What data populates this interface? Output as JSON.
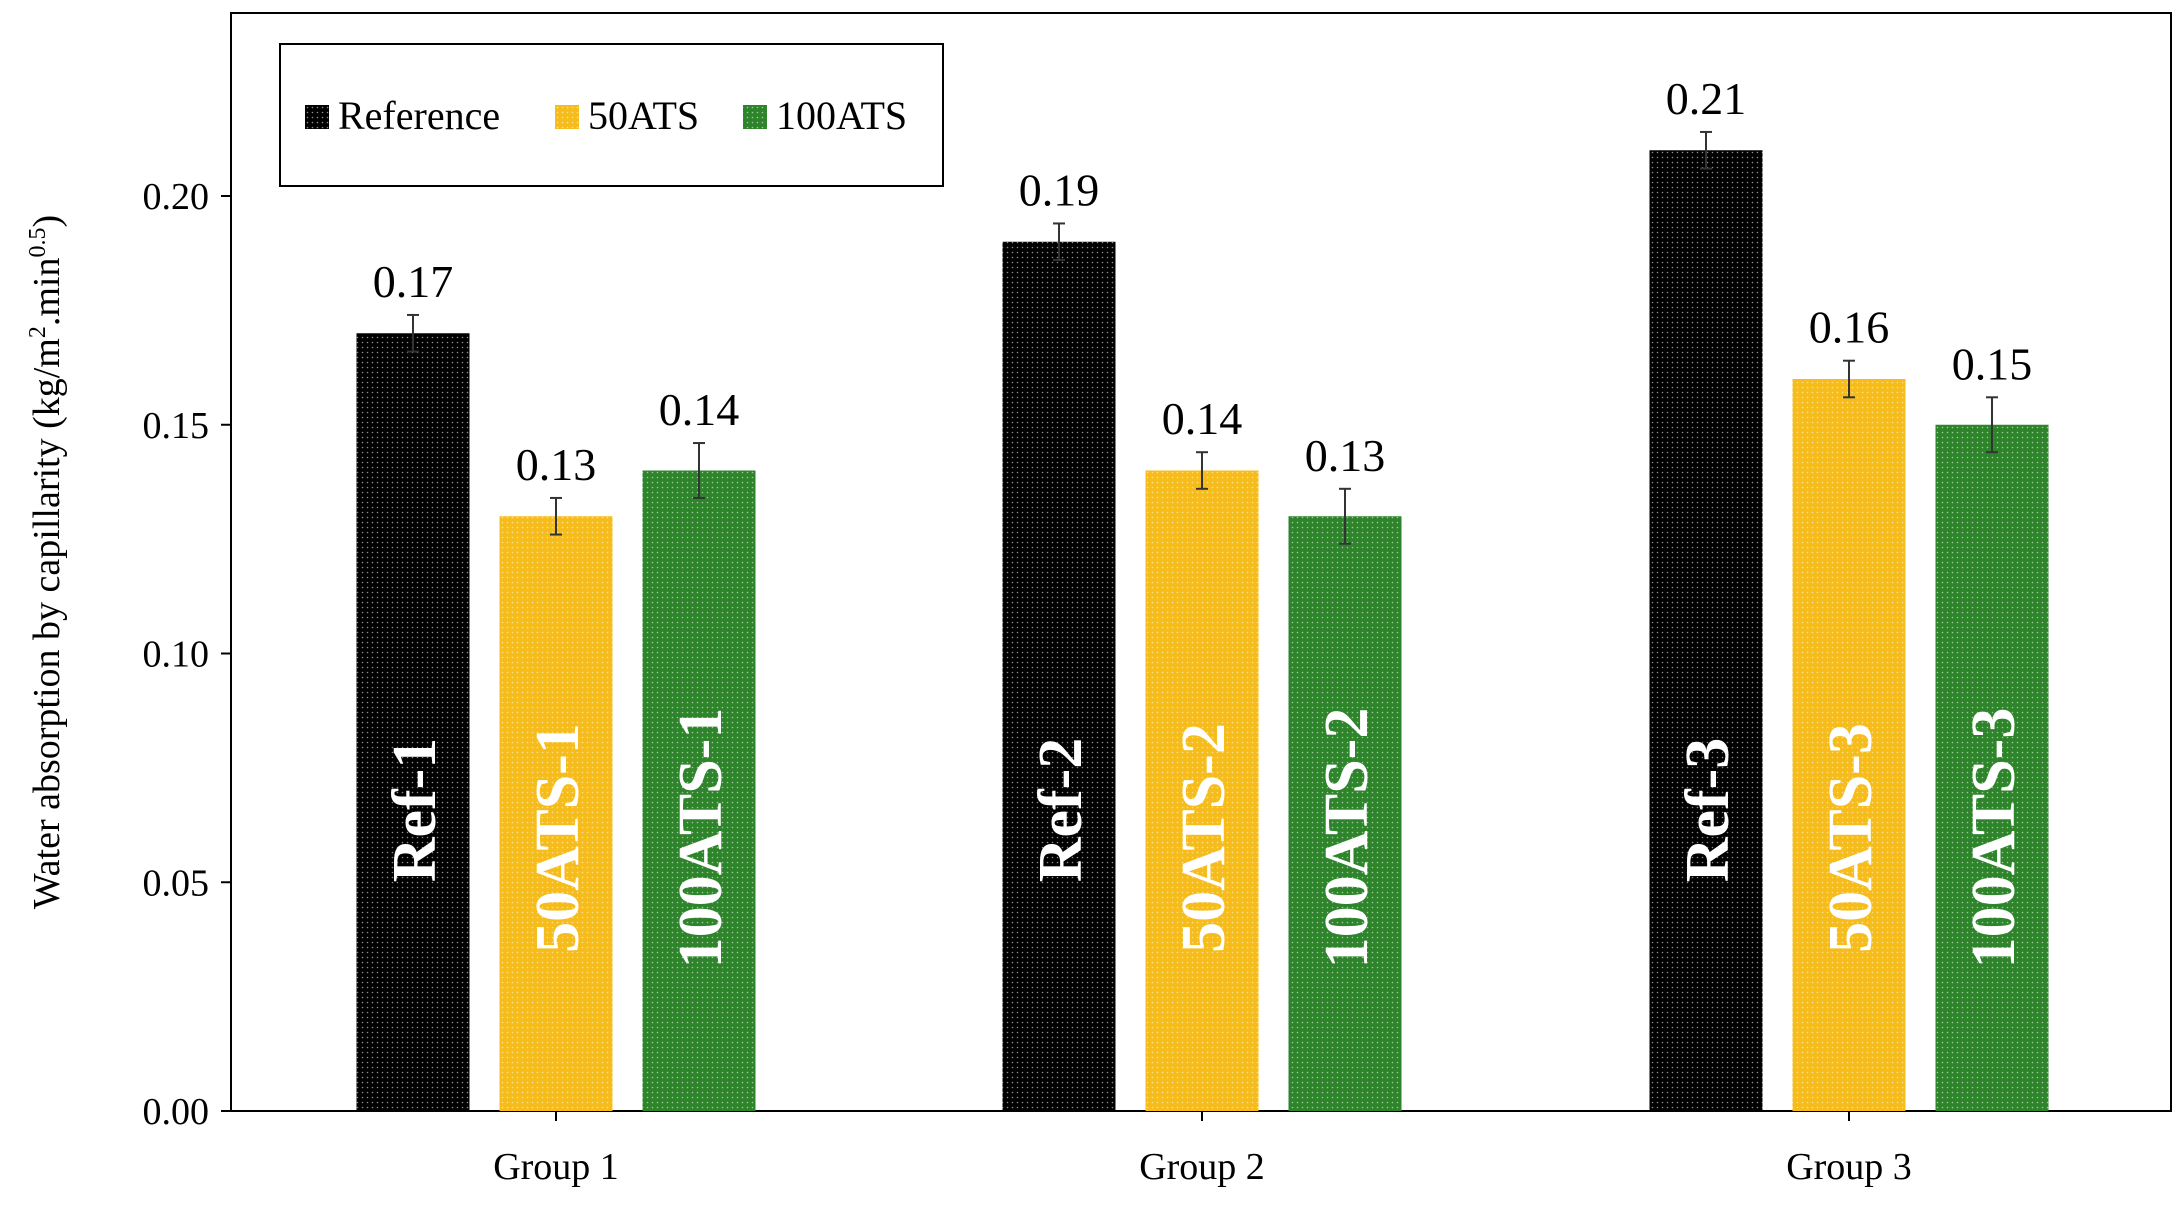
{
  "chart_data": {
    "type": "bar",
    "title": "",
    "xlabel": "",
    "ylabel": "Water absorption by capillarity (kg/m",
    "ylabel_unit_mid": ".min",
    "ylabel_sup_1": "2",
    "ylabel_sup_2": "0.5",
    "ylabel_close": ")",
    "ylim": [
      0,
      0.24
    ],
    "yticks": [
      "0.00",
      "0.05",
      "0.10",
      "0.15",
      "0.20"
    ],
    "grid": false,
    "legend_position": "top-left",
    "categories": [
      "Group 1",
      "Group 2",
      "Group 3"
    ],
    "series": [
      {
        "name": "Reference",
        "color": "#000000",
        "values": [
          0.17,
          0.19,
          0.21
        ],
        "value_labels": [
          "0.17",
          "0.19",
          "0.21"
        ],
        "error": [
          0.004,
          0.004,
          0.004
        ],
        "bar_labels": [
          "Ref-1",
          "Ref-2",
          "Ref-3"
        ]
      },
      {
        "name": "50ATS",
        "color": "#F5BC1B",
        "values": [
          0.13,
          0.14,
          0.16
        ],
        "value_labels": [
          "0.13",
          "0.14",
          "0.16"
        ],
        "error": [
          0.004,
          0.004,
          0.004
        ],
        "bar_labels": [
          "50ATS-1",
          "50ATS-2",
          "50ATS-3"
        ]
      },
      {
        "name": "100ATS",
        "color": "#2E842B",
        "values": [
          0.14,
          0.13,
          0.15
        ],
        "value_labels": [
          "0.14",
          "0.13",
          "0.15"
        ],
        "error": [
          0.006,
          0.006,
          0.006
        ],
        "bar_labels": [
          "100ATS-1",
          "100ATS-2",
          "100ATS-3"
        ]
      }
    ]
  }
}
